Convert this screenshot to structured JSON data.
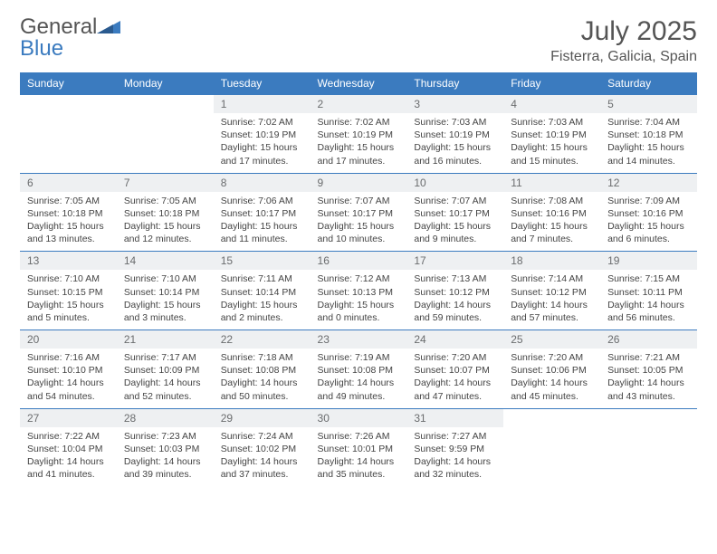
{
  "brand": {
    "part1": "General",
    "part2": "Blue"
  },
  "title": "July 2025",
  "location": "Fisterra, Galicia, Spain",
  "colors": {
    "header_bg": "#3b7bbf",
    "header_text": "#ffffff",
    "daynum_bg": "#eef0f2",
    "daynum_text": "#6a6c6e",
    "border": "#3b7bbf",
    "body_text": "#444444"
  },
  "day_headers": [
    "Sunday",
    "Monday",
    "Tuesday",
    "Wednesday",
    "Thursday",
    "Friday",
    "Saturday"
  ],
  "weeks": [
    [
      null,
      null,
      {
        "n": "1",
        "sr": "7:02 AM",
        "ss": "10:19 PM",
        "dl": "15 hours and 17 minutes."
      },
      {
        "n": "2",
        "sr": "7:02 AM",
        "ss": "10:19 PM",
        "dl": "15 hours and 17 minutes."
      },
      {
        "n": "3",
        "sr": "7:03 AM",
        "ss": "10:19 PM",
        "dl": "15 hours and 16 minutes."
      },
      {
        "n": "4",
        "sr": "7:03 AM",
        "ss": "10:19 PM",
        "dl": "15 hours and 15 minutes."
      },
      {
        "n": "5",
        "sr": "7:04 AM",
        "ss": "10:18 PM",
        "dl": "15 hours and 14 minutes."
      }
    ],
    [
      {
        "n": "6",
        "sr": "7:05 AM",
        "ss": "10:18 PM",
        "dl": "15 hours and 13 minutes."
      },
      {
        "n": "7",
        "sr": "7:05 AM",
        "ss": "10:18 PM",
        "dl": "15 hours and 12 minutes."
      },
      {
        "n": "8",
        "sr": "7:06 AM",
        "ss": "10:17 PM",
        "dl": "15 hours and 11 minutes."
      },
      {
        "n": "9",
        "sr": "7:07 AM",
        "ss": "10:17 PM",
        "dl": "15 hours and 10 minutes."
      },
      {
        "n": "10",
        "sr": "7:07 AM",
        "ss": "10:17 PM",
        "dl": "15 hours and 9 minutes."
      },
      {
        "n": "11",
        "sr": "7:08 AM",
        "ss": "10:16 PM",
        "dl": "15 hours and 7 minutes."
      },
      {
        "n": "12",
        "sr": "7:09 AM",
        "ss": "10:16 PM",
        "dl": "15 hours and 6 minutes."
      }
    ],
    [
      {
        "n": "13",
        "sr": "7:10 AM",
        "ss": "10:15 PM",
        "dl": "15 hours and 5 minutes."
      },
      {
        "n": "14",
        "sr": "7:10 AM",
        "ss": "10:14 PM",
        "dl": "15 hours and 3 minutes."
      },
      {
        "n": "15",
        "sr": "7:11 AM",
        "ss": "10:14 PM",
        "dl": "15 hours and 2 minutes."
      },
      {
        "n": "16",
        "sr": "7:12 AM",
        "ss": "10:13 PM",
        "dl": "15 hours and 0 minutes."
      },
      {
        "n": "17",
        "sr": "7:13 AM",
        "ss": "10:12 PM",
        "dl": "14 hours and 59 minutes."
      },
      {
        "n": "18",
        "sr": "7:14 AM",
        "ss": "10:12 PM",
        "dl": "14 hours and 57 minutes."
      },
      {
        "n": "19",
        "sr": "7:15 AM",
        "ss": "10:11 PM",
        "dl": "14 hours and 56 minutes."
      }
    ],
    [
      {
        "n": "20",
        "sr": "7:16 AM",
        "ss": "10:10 PM",
        "dl": "14 hours and 54 minutes."
      },
      {
        "n": "21",
        "sr": "7:17 AM",
        "ss": "10:09 PM",
        "dl": "14 hours and 52 minutes."
      },
      {
        "n": "22",
        "sr": "7:18 AM",
        "ss": "10:08 PM",
        "dl": "14 hours and 50 minutes."
      },
      {
        "n": "23",
        "sr": "7:19 AM",
        "ss": "10:08 PM",
        "dl": "14 hours and 49 minutes."
      },
      {
        "n": "24",
        "sr": "7:20 AM",
        "ss": "10:07 PM",
        "dl": "14 hours and 47 minutes."
      },
      {
        "n": "25",
        "sr": "7:20 AM",
        "ss": "10:06 PM",
        "dl": "14 hours and 45 minutes."
      },
      {
        "n": "26",
        "sr": "7:21 AM",
        "ss": "10:05 PM",
        "dl": "14 hours and 43 minutes."
      }
    ],
    [
      {
        "n": "27",
        "sr": "7:22 AM",
        "ss": "10:04 PM",
        "dl": "14 hours and 41 minutes."
      },
      {
        "n": "28",
        "sr": "7:23 AM",
        "ss": "10:03 PM",
        "dl": "14 hours and 39 minutes."
      },
      {
        "n": "29",
        "sr": "7:24 AM",
        "ss": "10:02 PM",
        "dl": "14 hours and 37 minutes."
      },
      {
        "n": "30",
        "sr": "7:26 AM",
        "ss": "10:01 PM",
        "dl": "14 hours and 35 minutes."
      },
      {
        "n": "31",
        "sr": "7:27 AM",
        "ss": "9:59 PM",
        "dl": "14 hours and 32 minutes."
      },
      null,
      null
    ]
  ],
  "labels": {
    "sunrise": "Sunrise:",
    "sunset": "Sunset:",
    "daylight": "Daylight:"
  }
}
